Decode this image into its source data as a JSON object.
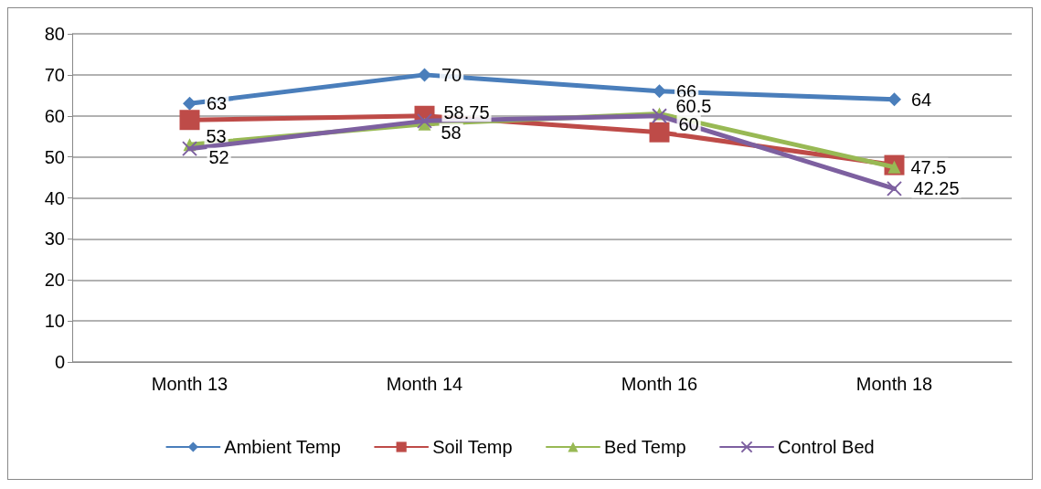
{
  "chart_data": {
    "type": "line",
    "categories": [
      "Month 13",
      "Month 14",
      "Month 16",
      "Month 18"
    ],
    "series": [
      {
        "name": "Ambient Temp",
        "color": "#4a7ebb",
        "marker": "diamond",
        "values": [
          63,
          70,
          66,
          64
        ],
        "value_labels": [
          "63",
          "70",
          "66",
          "64"
        ]
      },
      {
        "name": "Soil Temp",
        "color": "#be4b48",
        "marker": "square",
        "values": [
          59,
          60,
          56,
          48
        ],
        "value_labels": [
          null,
          null,
          null,
          null
        ]
      },
      {
        "name": "Bed Temp",
        "color": "#98b954",
        "marker": "triangle",
        "values": [
          53,
          58,
          60.5,
          47.5
        ],
        "value_labels": [
          "53",
          "58",
          "60.5",
          "47.5"
        ]
      },
      {
        "name": "Control Bed",
        "color": "#7d60a0",
        "marker": "cross",
        "values": [
          52,
          58.75,
          60,
          42.25
        ],
        "value_labels": [
          "52",
          "58.75",
          "60",
          "42.25"
        ]
      }
    ],
    "ylim": [
      0,
      80
    ],
    "yticks": [
      0,
      10,
      20,
      30,
      40,
      50,
      60,
      70,
      80
    ],
    "grid": "y",
    "legend": "bottom",
    "line_style": "solid"
  }
}
